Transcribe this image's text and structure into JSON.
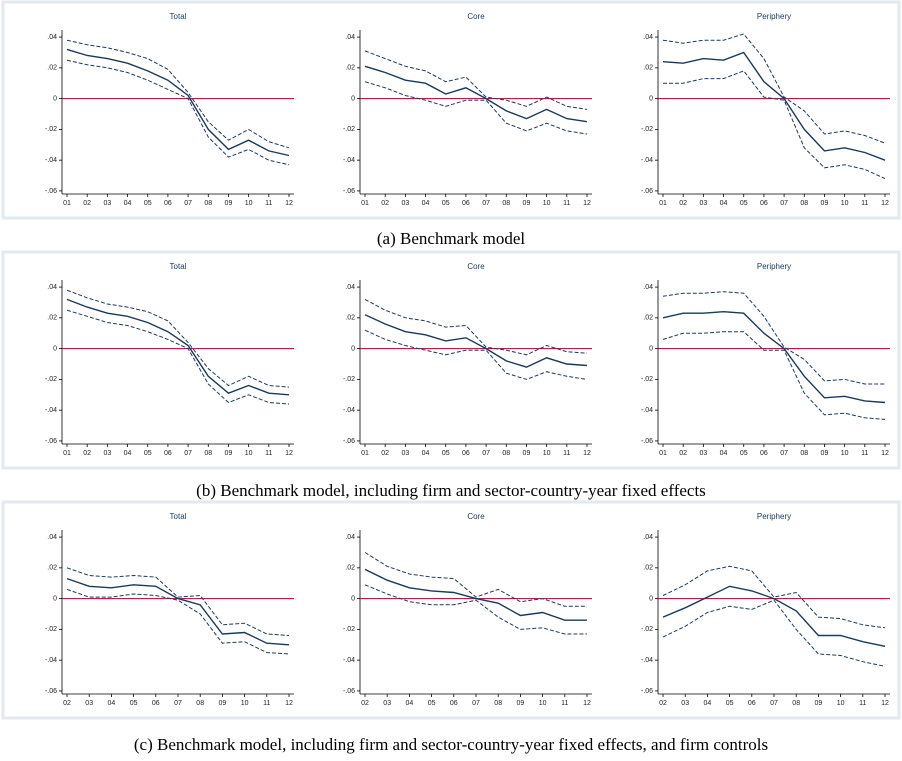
{
  "captions": [
    "(a) Benchmark model",
    "(b) Benchmark model, including firm and sector-country-year fixed effects",
    "(c) Benchmark model, including firm and sector-country-year fixed effects, and firm controls"
  ],
  "chart_data": [
    {
      "type": "line",
      "title": "Total",
      "categories": [
        "01",
        "02",
        "03",
        "04",
        "05",
        "06",
        "07",
        "08",
        "09",
        "10",
        "11",
        "12"
      ],
      "ylim": [
        -0.062,
        0.042
      ],
      "yticks": [
        {
          "value": 0.04,
          "label": ".04"
        },
        {
          "value": 0.02,
          "label": ".02"
        },
        0,
        {
          "value": -0.02,
          "label": "-.02"
        },
        {
          "value": -0.04,
          "label": "-.04"
        },
        {
          "value": -0.06,
          "label": "-.06"
        }
      ],
      "refline": {
        "value": 0,
        "color": "#a3003c"
      },
      "series": [
        {
          "color": "#1a3a5c",
          "dash": false,
          "values": [
            0.032,
            0.028,
            0.026,
            0.023,
            0.018,
            0.012,
            0.002,
            -0.02,
            -0.033,
            -0.027,
            -0.034,
            -0.037
          ]
        },
        {
          "color": "#1a3a5c",
          "dash": true,
          "values": [
            0.038,
            0.035,
            0.033,
            0.03,
            0.026,
            0.019,
            0.004,
            -0.015,
            -0.027,
            -0.02,
            -0.028,
            -0.032
          ]
        },
        {
          "color": "#1a3a5c",
          "dash": true,
          "values": [
            0.025,
            0.022,
            0.02,
            0.017,
            0.012,
            0.006,
            0,
            -0.025,
            -0.038,
            -0.033,
            -0.04,
            -0.043
          ]
        }
      ]
    },
    {
      "type": "line",
      "title": "Core",
      "categories": [
        "01",
        "02",
        "03",
        "04",
        "05",
        "06",
        "07",
        "08",
        "09",
        "10",
        "11",
        "12"
      ],
      "ylim": [
        -0.062,
        0.042
      ],
      "yticks": [
        {
          "value": 0.04,
          "label": ".04"
        },
        {
          "value": 0.02,
          "label": ".02"
        },
        0,
        {
          "value": -0.02,
          "label": "-.02"
        },
        {
          "value": -0.04,
          "label": "-.04"
        },
        {
          "value": -0.06,
          "label": "-.06"
        }
      ],
      "refline": {
        "value": 0,
        "color": "#a3003c"
      },
      "series": [
        {
          "color": "#1a3a5c",
          "dash": false,
          "values": [
            0.021,
            0.017,
            0.012,
            0.01,
            0.003,
            0.007,
            0,
            -0.008,
            -0.013,
            -0.007,
            -0.013,
            -0.015
          ]
        },
        {
          "color": "#1a3a5c",
          "dash": true,
          "values": [
            0.031,
            0.026,
            0.021,
            0.018,
            0.011,
            0.014,
            0.001,
            -0.001,
            -0.005,
            0.001,
            -0.005,
            -0.007
          ]
        },
        {
          "color": "#1a3a5c",
          "dash": true,
          "values": [
            0.011,
            0.007,
            0.002,
            -0.001,
            -0.005,
            -0.001,
            -0.001,
            -0.016,
            -0.021,
            -0.016,
            -0.021,
            -0.023
          ]
        }
      ]
    },
    {
      "type": "line",
      "title": "Periphery",
      "categories": [
        "01",
        "02",
        "03",
        "04",
        "05",
        "06",
        "07",
        "08",
        "09",
        "10",
        "11",
        "12"
      ],
      "ylim": [
        -0.062,
        0.042
      ],
      "yticks": [
        {
          "value": 0.04,
          "label": ".04"
        },
        {
          "value": 0.02,
          "label": ".02"
        },
        0,
        {
          "value": -0.02,
          "label": "-.02"
        },
        {
          "value": -0.04,
          "label": "-.04"
        },
        {
          "value": -0.06,
          "label": "-.06"
        }
      ],
      "refline": {
        "value": 0,
        "color": "#a3003c"
      },
      "series": [
        {
          "color": "#1a3a5c",
          "dash": false,
          "values": [
            0.024,
            0.023,
            0.026,
            0.025,
            0.03,
            0.011,
            0,
            -0.02,
            -0.034,
            -0.032,
            -0.035,
            -0.04
          ]
        },
        {
          "color": "#1a3a5c",
          "dash": true,
          "values": [
            0.038,
            0.036,
            0.038,
            0.038,
            0.042,
            0.026,
            0.001,
            -0.008,
            -0.023,
            -0.021,
            -0.024,
            -0.029
          ]
        },
        {
          "color": "#1a3a5c",
          "dash": true,
          "values": [
            0.01,
            0.01,
            0.013,
            0.013,
            0.018,
            0.001,
            -0.001,
            -0.032,
            -0.045,
            -0.043,
            -0.046,
            -0.052
          ]
        }
      ]
    },
    {
      "type": "line",
      "title": "Total",
      "categories": [
        "01",
        "02",
        "03",
        "04",
        "05",
        "06",
        "07",
        "08",
        "09",
        "10",
        "11",
        "12"
      ],
      "ylim": [
        -0.062,
        0.042
      ],
      "yticks": [
        {
          "value": 0.04,
          "label": ".04"
        },
        {
          "value": 0.02,
          "label": ".02"
        },
        0,
        {
          "value": -0.02,
          "label": "-.02"
        },
        {
          "value": -0.04,
          "label": "-.04"
        },
        {
          "value": -0.06,
          "label": "-.06"
        }
      ],
      "refline": {
        "value": 0,
        "color": "#a3003c"
      },
      "series": [
        {
          "color": "#1a3a5c",
          "dash": false,
          "values": [
            0.032,
            0.027,
            0.023,
            0.021,
            0.017,
            0.011,
            0.002,
            -0.018,
            -0.029,
            -0.024,
            -0.029,
            -0.03
          ]
        },
        {
          "color": "#1a3a5c",
          "dash": true,
          "values": [
            0.038,
            0.033,
            0.029,
            0.027,
            0.024,
            0.018,
            0.004,
            -0.013,
            -0.024,
            -0.018,
            -0.024,
            -0.025
          ]
        },
        {
          "color": "#1a3a5c",
          "dash": true,
          "values": [
            0.025,
            0.021,
            0.017,
            0.015,
            0.011,
            0.006,
            0,
            -0.023,
            -0.035,
            -0.03,
            -0.035,
            -0.036
          ]
        }
      ]
    },
    {
      "type": "line",
      "title": "Core",
      "categories": [
        "01",
        "02",
        "03",
        "04",
        "05",
        "06",
        "07",
        "08",
        "09",
        "10",
        "11",
        "12"
      ],
      "ylim": [
        -0.062,
        0.042
      ],
      "yticks": [
        {
          "value": 0.04,
          "label": ".04"
        },
        {
          "value": 0.02,
          "label": ".02"
        },
        0,
        {
          "value": -0.02,
          "label": "-.02"
        },
        {
          "value": -0.04,
          "label": "-.04"
        },
        {
          "value": -0.06,
          "label": "-.06"
        }
      ],
      "refline": {
        "value": 0,
        "color": "#a3003c"
      },
      "series": [
        {
          "color": "#1a3a5c",
          "dash": false,
          "values": [
            0.022,
            0.016,
            0.011,
            0.009,
            0.005,
            0.007,
            0,
            -0.008,
            -0.012,
            -0.006,
            -0.01,
            -0.011
          ]
        },
        {
          "color": "#1a3a5c",
          "dash": true,
          "values": [
            0.032,
            0.025,
            0.02,
            0.018,
            0.014,
            0.015,
            0.001,
            -0.001,
            -0.004,
            0.002,
            -0.002,
            -0.003
          ]
        },
        {
          "color": "#1a3a5c",
          "dash": true,
          "values": [
            0.012,
            0.006,
            0.002,
            -0.001,
            -0.004,
            -0.001,
            -0.001,
            -0.016,
            -0.02,
            -0.015,
            -0.018,
            -0.02
          ]
        }
      ]
    },
    {
      "type": "line",
      "title": "Periphery",
      "categories": [
        "01",
        "02",
        "03",
        "04",
        "05",
        "06",
        "07",
        "08",
        "09",
        "10",
        "11",
        "12"
      ],
      "ylim": [
        -0.062,
        0.042
      ],
      "yticks": [
        {
          "value": 0.04,
          "label": ".04"
        },
        {
          "value": 0.02,
          "label": ".02"
        },
        0,
        {
          "value": -0.02,
          "label": "-.02"
        },
        {
          "value": -0.04,
          "label": "-.04"
        },
        {
          "value": -0.06,
          "label": "-.06"
        }
      ],
      "refline": {
        "value": 0,
        "color": "#a3003c"
      },
      "series": [
        {
          "color": "#1a3a5c",
          "dash": false,
          "values": [
            0.02,
            0.023,
            0.023,
            0.024,
            0.023,
            0.01,
            0,
            -0.018,
            -0.032,
            -0.031,
            -0.034,
            -0.035
          ]
        },
        {
          "color": "#1a3a5c",
          "dash": true,
          "values": [
            0.034,
            0.036,
            0.036,
            0.037,
            0.036,
            0.021,
            0.001,
            -0.007,
            -0.021,
            -0.02,
            -0.023,
            -0.023
          ]
        },
        {
          "color": "#1a3a5c",
          "dash": true,
          "values": [
            0.006,
            0.01,
            0.01,
            0.011,
            0.011,
            -0.001,
            -0.001,
            -0.029,
            -0.043,
            -0.042,
            -0.045,
            -0.046
          ]
        }
      ]
    },
    {
      "type": "line",
      "title": "Total",
      "categories": [
        "02",
        "03",
        "04",
        "05",
        "06",
        "07",
        "08",
        "09",
        "10",
        "11",
        "12"
      ],
      "ylim": [
        -0.062,
        0.042
      ],
      "yticks": [
        {
          "value": 0.04,
          "label": ".04"
        },
        {
          "value": 0.02,
          "label": ".02"
        },
        0,
        {
          "value": -0.02,
          "label": "-.02"
        },
        {
          "value": -0.04,
          "label": "-.04"
        },
        {
          "value": -0.06,
          "label": "-.06"
        }
      ],
      "refline": {
        "value": 0,
        "color": "#a3003c"
      },
      "series": [
        {
          "color": "#1a3a5c",
          "dash": false,
          "values": [
            0.013,
            0.008,
            0.007,
            0.009,
            0.008,
            0,
            -0.004,
            -0.023,
            -0.022,
            -0.029,
            -0.03
          ]
        },
        {
          "color": "#1a3a5c",
          "dash": true,
          "values": [
            0.02,
            0.015,
            0.014,
            0.015,
            0.014,
            0.001,
            0.002,
            -0.017,
            -0.016,
            -0.023,
            -0.024
          ]
        },
        {
          "color": "#1a3a5c",
          "dash": true,
          "values": [
            0.006,
            0.001,
            0.001,
            0.003,
            0.002,
            -0.001,
            -0.01,
            -0.029,
            -0.028,
            -0.035,
            -0.036
          ]
        }
      ]
    },
    {
      "type": "line",
      "title": "Core",
      "categories": [
        "02",
        "03",
        "04",
        "05",
        "06",
        "07",
        "08",
        "09",
        "10",
        "11",
        "12"
      ],
      "ylim": [
        -0.062,
        0.042
      ],
      "yticks": [
        {
          "value": 0.04,
          "label": ".04"
        },
        {
          "value": 0.02,
          "label": ".02"
        },
        0,
        {
          "value": -0.02,
          "label": "-.02"
        },
        {
          "value": -0.04,
          "label": "-.04"
        },
        {
          "value": -0.06,
          "label": "-.06"
        }
      ],
      "refline": {
        "value": 0,
        "color": "#a3003c"
      },
      "series": [
        {
          "color": "#1a3a5c",
          "dash": false,
          "values": [
            0.019,
            0.012,
            0.007,
            0.005,
            0.004,
            0,
            -0.003,
            -0.011,
            -0.009,
            -0.014,
            -0.014
          ]
        },
        {
          "color": "#1a3a5c",
          "dash": true,
          "values": [
            0.03,
            0.021,
            0.016,
            0.014,
            0.013,
            0.001,
            0.006,
            -0.002,
            0,
            -0.005,
            -0.005
          ]
        },
        {
          "color": "#1a3a5c",
          "dash": true,
          "values": [
            0.009,
            0.003,
            -0.002,
            -0.004,
            -0.004,
            -0.001,
            -0.012,
            -0.02,
            -0.019,
            -0.023,
            -0.023
          ]
        }
      ]
    },
    {
      "type": "line",
      "title": "Periphery",
      "categories": [
        "02",
        "03",
        "04",
        "05",
        "06",
        "07",
        "08",
        "09",
        "10",
        "11",
        "12"
      ],
      "ylim": [
        -0.062,
        0.042
      ],
      "yticks": [
        {
          "value": 0.04,
          "label": ".04"
        },
        {
          "value": 0.02,
          "label": ".02"
        },
        0,
        {
          "value": -0.02,
          "label": "-.02"
        },
        {
          "value": -0.04,
          "label": "-.04"
        },
        {
          "value": -0.06,
          "label": "-.06"
        }
      ],
      "refline": {
        "value": 0,
        "color": "#a3003c"
      },
      "series": [
        {
          "color": "#1a3a5c",
          "dash": false,
          "values": [
            -0.012,
            -0.006,
            0.001,
            0.008,
            0.005,
            0,
            -0.008,
            -0.024,
            -0.024,
            -0.028,
            -0.031
          ]
        },
        {
          "color": "#1a3a5c",
          "dash": true,
          "values": [
            0.002,
            0.009,
            0.018,
            0.021,
            0.018,
            0.001,
            0.004,
            -0.012,
            -0.013,
            -0.017,
            -0.019
          ]
        },
        {
          "color": "#1a3a5c",
          "dash": true,
          "values": [
            -0.025,
            -0.018,
            -0.009,
            -0.005,
            -0.007,
            -0.001,
            -0.02,
            -0.036,
            -0.037,
            -0.041,
            -0.044
          ]
        }
      ]
    }
  ]
}
